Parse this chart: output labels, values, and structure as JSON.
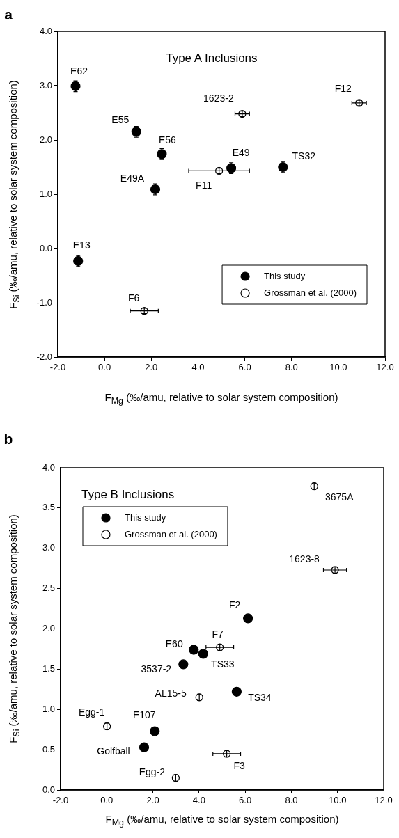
{
  "chart_data": [
    {
      "type": "scatter",
      "title": "Type A Inclusions",
      "xlabel": "F$_{Mg}$ (‰/amu, relative to solar system composition)",
      "ylabel": "F$_{Si}$ (‰/amu, relative to solar system composition)",
      "xlim": [
        -2,
        12
      ],
      "ylim": [
        -2,
        4
      ],
      "xticks": [
        {
          "value": -2,
          "label": "-2.0"
        },
        {
          "value": 0,
          "label": "0.0"
        },
        {
          "value": 2,
          "label": "2.0"
        },
        {
          "value": 4,
          "label": "4.0"
        },
        {
          "value": 6,
          "label": "6.0"
        },
        {
          "value": 8,
          "label": "8.0"
        },
        {
          "value": 10,
          "label": "10.0"
        },
        {
          "value": 12,
          "label": "12.0"
        }
      ],
      "yticks": [
        {
          "value": -2,
          "label": "-2.0"
        },
        {
          "value": -1,
          "label": "-1.0"
        },
        {
          "value": 0,
          "label": "0.0"
        },
        {
          "value": 1,
          "label": "1.0"
        },
        {
          "value": 2,
          "label": "2.0"
        },
        {
          "value": 3,
          "label": "3.0"
        },
        {
          "value": 4,
          "label": "4.0"
        }
      ],
      "grid": false,
      "legend": "bottom right",
      "marker": "circle",
      "series": [
        {
          "name": "This study",
          "color": "#000000",
          "x": [
            -1.24,
            1.36,
            2.45,
            2.17,
            5.42,
            7.63,
            -1.13
          ],
          "values": [
            2.99,
            2.15,
            1.74,
            1.09,
            1.48,
            1.5,
            -0.23
          ],
          "errors": [
            0.1,
            0.1,
            0.1,
            0.1,
            0.1,
            0.1,
            0.1
          ]
        },
        {
          "name": "Grossman et al. (2000)",
          "color": "#ffffff",
          "x": [
            1.7,
            4.9,
            5.89,
            10.89
          ],
          "values": [
            -1.15,
            1.43,
            2.48,
            2.68
          ],
          "errors": [
            0.05,
            0.05,
            0.05,
            0.05
          ],
          "xerrors": [
            0.6,
            1.3,
            0.31,
            0.31
          ]
        }
      ],
      "annotations": [
        "a",
        {
          "text": "E62",
          "x": -1.24,
          "y": 2.99
        },
        {
          "text": "E55",
          "x": 1.36,
          "y": 2.15
        },
        {
          "text": "E56",
          "x": 2.45,
          "y": 1.74
        },
        {
          "text": "E49A",
          "x": 2.17,
          "y": 1.09
        },
        {
          "text": "E49",
          "x": 5.42,
          "y": 1.48
        },
        {
          "text": "TS32",
          "x": 7.63,
          "y": 1.5
        },
        {
          "text": "E13",
          "x": -1.13,
          "y": -0.23
        },
        {
          "text": "F6",
          "x": 1.7,
          "y": -1.15
        },
        {
          "text": "F11",
          "x": 4.9,
          "y": 1.43
        },
        {
          "text": "1623-2",
          "x": 5.89,
          "y": 2.48
        },
        {
          "text": "F12",
          "x": 10.89,
          "y": 2.68
        }
      ]
    },
    {
      "type": "scatter",
      "title": "Type B Inclusions",
      "xlabel": "F$_{Mg}$ (‰/amu, relative to solar system composition)",
      "ylabel": "F$_{Si}$ (‰/amu, relative to solar system composition)",
      "xlim": [
        -2,
        12
      ],
      "ylim": [
        0,
        4
      ],
      "xticks": [
        {
          "value": -2,
          "label": "-2.0"
        },
        {
          "value": 0,
          "label": "0.0"
        },
        {
          "value": 2,
          "label": "2.0"
        },
        {
          "value": 4,
          "label": "4.0"
        },
        {
          "value": 6,
          "label": "6.0"
        },
        {
          "value": 8,
          "label": "8.0"
        },
        {
          "value": 10,
          "label": "10.0"
        },
        {
          "value": 12,
          "label": "12.0"
        }
      ],
      "yticks": [
        {
          "value": 0,
          "label": "0.0"
        },
        {
          "value": 0.5,
          "label": "0.5"
        },
        {
          "value": 1,
          "label": "1.0"
        },
        {
          "value": 1.5,
          "label": "1.5"
        },
        {
          "value": 2,
          "label": "2.0"
        },
        {
          "value": 2.5,
          "label": "2.5"
        },
        {
          "value": 3,
          "label": "3.0"
        },
        {
          "value": 3.5,
          "label": "3.5"
        },
        {
          "value": 4,
          "label": "4.0"
        }
      ],
      "grid": false,
      "legend": "top left",
      "marker": "circle",
      "series": [
        {
          "name": "This study",
          "color": "#000000",
          "x": [
            6.12,
            3.77,
            4.18,
            3.32,
            5.63,
            2.08,
            1.62
          ],
          "values": [
            2.13,
            1.74,
            1.69,
            1.56,
            1.22,
            0.73,
            0.53
          ]
        },
        {
          "name": "Grossman et al. (2000)",
          "color": "#ffffff",
          "x": [
            8.99,
            9.89,
            4.9,
            4.01,
            0.01,
            5.2,
            2.99
          ],
          "values": [
            3.77,
            2.73,
            1.77,
            1.15,
            0.79,
            0.45,
            0.15
          ],
          "errors": [
            0.04,
            0.04,
            0.04,
            0.04,
            0.04,
            0.04,
            0.04
          ],
          "xerrors": [
            null,
            0.5,
            0.6,
            null,
            null,
            0.6,
            null
          ]
        }
      ],
      "annotations": [
        "b",
        {
          "text": "F2",
          "x": 6.12,
          "y": 2.13
        },
        {
          "text": "E60",
          "x": 3.77,
          "y": 1.74
        },
        {
          "text": "TS33",
          "x": 4.18,
          "y": 1.69
        },
        {
          "text": "3537-2",
          "x": 3.32,
          "y": 1.56
        },
        {
          "text": "TS34",
          "x": 5.63,
          "y": 1.22
        },
        {
          "text": "E107",
          "x": 2.08,
          "y": 0.73
        },
        {
          "text": "Golfball",
          "x": 1.62,
          "y": 0.53
        },
        {
          "text": "3675A",
          "x": 8.99,
          "y": 3.77
        },
        {
          "text": "1623-8",
          "x": 9.89,
          "y": 2.73
        },
        {
          "text": "F7",
          "x": 4.9,
          "y": 1.77
        },
        {
          "text": "AL15-5",
          "x": 4.01,
          "y": 1.15
        },
        {
          "text": "Egg-1",
          "x": 0.01,
          "y": 0.79
        },
        {
          "text": "F3",
          "x": 5.2,
          "y": 0.45
        },
        {
          "text": "Egg-2",
          "x": 2.99,
          "y": 0.15
        }
      ]
    }
  ]
}
